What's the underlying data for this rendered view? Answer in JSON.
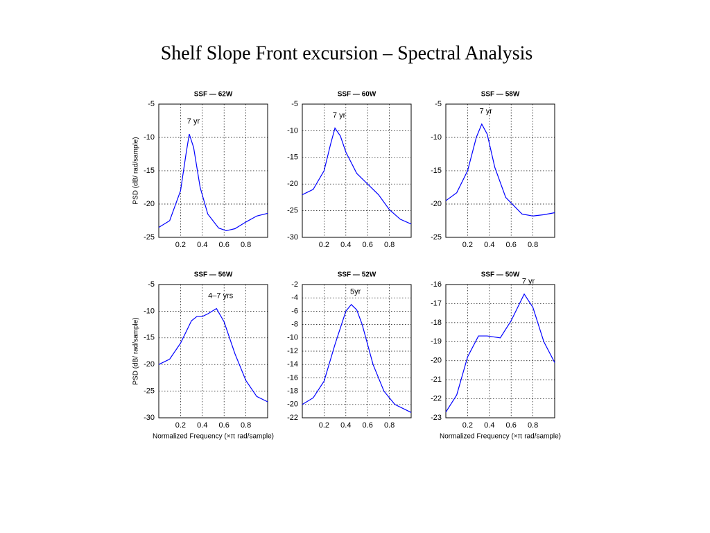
{
  "title": "Shelf Slope Front excursion – Spectral Analysis",
  "chart_data": [
    {
      "type": "line",
      "title": "SSF — 62W",
      "ylabel": "PSD (dB/ rad/sample)",
      "annotation": "7 yr",
      "x": [
        0,
        0.1,
        0.2,
        0.25,
        0.28,
        0.32,
        0.38,
        0.45,
        0.55,
        0.62,
        0.7,
        0.8,
        0.9,
        1
      ],
      "series": [
        {
          "color": "#0000ff",
          "values": [
            -23.5,
            -22.5,
            -18,
            -12.5,
            -9.5,
            -11.5,
            -17.5,
            -21.5,
            -23.6,
            -24,
            -23.7,
            -22.7,
            -21.8,
            -21.4
          ]
        }
      ],
      "xlim": [
        0,
        1
      ],
      "xticks": [
        0.2,
        0.4,
        0.6,
        0.8
      ],
      "ylim": [
        -25,
        -5
      ],
      "yticks": [
        -25,
        -20,
        -15,
        -10,
        -5
      ],
      "grid": true
    },
    {
      "type": "line",
      "title": "SSF — 60W",
      "annotation": "7 yr",
      "x": [
        0,
        0.1,
        0.2,
        0.26,
        0.3,
        0.35,
        0.4,
        0.5,
        0.6,
        0.7,
        0.8,
        0.9,
        1
      ],
      "series": [
        {
          "color": "#0000ff",
          "values": [
            -22,
            -21,
            -17.5,
            -12.5,
            -9.5,
            -11,
            -14,
            -18,
            -20,
            -22,
            -24.8,
            -26.6,
            -27.5
          ]
        }
      ],
      "xlim": [
        0,
        1
      ],
      "xticks": [
        0.2,
        0.4,
        0.6,
        0.8
      ],
      "ylim": [
        -30,
        -5
      ],
      "yticks": [
        -30,
        -25,
        -20,
        -15,
        -10,
        -5
      ],
      "grid": true
    },
    {
      "type": "line",
      "title": "SSF — 58W",
      "annotation": "7 yr",
      "x": [
        0,
        0.1,
        0.2,
        0.28,
        0.33,
        0.38,
        0.45,
        0.55,
        0.7,
        0.8,
        0.9,
        1
      ],
      "series": [
        {
          "color": "#0000ff",
          "values": [
            -19.5,
            -18.3,
            -15,
            -10,
            -8,
            -9.5,
            -14.5,
            -19,
            -21.5,
            -21.8,
            -21.6,
            -21.3
          ]
        }
      ],
      "xlim": [
        0,
        1
      ],
      "xticks": [
        0.2,
        0.4,
        0.6,
        0.8
      ],
      "ylim": [
        -25,
        -5
      ],
      "yticks": [
        -25,
        -20,
        -15,
        -10,
        -5
      ],
      "grid": true
    },
    {
      "type": "line",
      "title": "SSF — 56W",
      "ylabel": "PSD (dB/ rad/sample)",
      "xlabel": "Normalized Frequency  (×π rad/sample)",
      "annotation": "4–7 yrs",
      "x": [
        0,
        0.1,
        0.2,
        0.3,
        0.35,
        0.4,
        0.45,
        0.53,
        0.6,
        0.7,
        0.8,
        0.9,
        1
      ],
      "series": [
        {
          "color": "#0000ff",
          "values": [
            -20,
            -19,
            -16,
            -11.8,
            -11,
            -11,
            -10.5,
            -9.5,
            -12,
            -18,
            -23,
            -26,
            -27
          ]
        }
      ],
      "xlim": [
        0,
        1
      ],
      "xticks": [
        0.2,
        0.4,
        0.6,
        0.8
      ],
      "ylim": [
        -30,
        -5
      ],
      "yticks": [
        -30,
        -25,
        -20,
        -15,
        -10,
        -5
      ],
      "grid": true
    },
    {
      "type": "line",
      "title": "SSF — 52W",
      "annotation": "5yr",
      "x": [
        0,
        0.1,
        0.2,
        0.3,
        0.4,
        0.45,
        0.5,
        0.55,
        0.65,
        0.75,
        0.85,
        1
      ],
      "series": [
        {
          "color": "#0000ff",
          "values": [
            -20,
            -19,
            -16.5,
            -11,
            -6,
            -5,
            -5.8,
            -8,
            -14,
            -18,
            -20,
            -21.2
          ]
        }
      ],
      "xlim": [
        0,
        1
      ],
      "xticks": [
        0.2,
        0.4,
        0.6,
        0.8
      ],
      "ylim": [
        -22,
        -2
      ],
      "yticks": [
        -22,
        -20,
        -18,
        -16,
        -14,
        -12,
        -10,
        -8,
        -6,
        -4,
        -2
      ],
      "grid": true
    },
    {
      "type": "line",
      "title": "SSF — 50W",
      "xlabel": "Normalized Frequency  (×π rad/sample)",
      "annotation": "7 yr",
      "x": [
        0,
        0.1,
        0.2,
        0.3,
        0.38,
        0.5,
        0.6,
        0.72,
        0.8,
        0.9,
        1
      ],
      "series": [
        {
          "color": "#0000ff",
          "values": [
            -22.7,
            -21.8,
            -19.8,
            -18.7,
            -18.7,
            -18.8,
            -17.9,
            -16.5,
            -17.2,
            -19,
            -20.1
          ]
        }
      ],
      "xlim": [
        0,
        1
      ],
      "xticks": [
        0.2,
        0.4,
        0.6,
        0.8
      ],
      "ylim": [
        -23,
        -16
      ],
      "yticks": [
        -23,
        -22,
        -21,
        -20,
        -19,
        -18,
        -17,
        -16
      ],
      "grid": true
    }
  ]
}
